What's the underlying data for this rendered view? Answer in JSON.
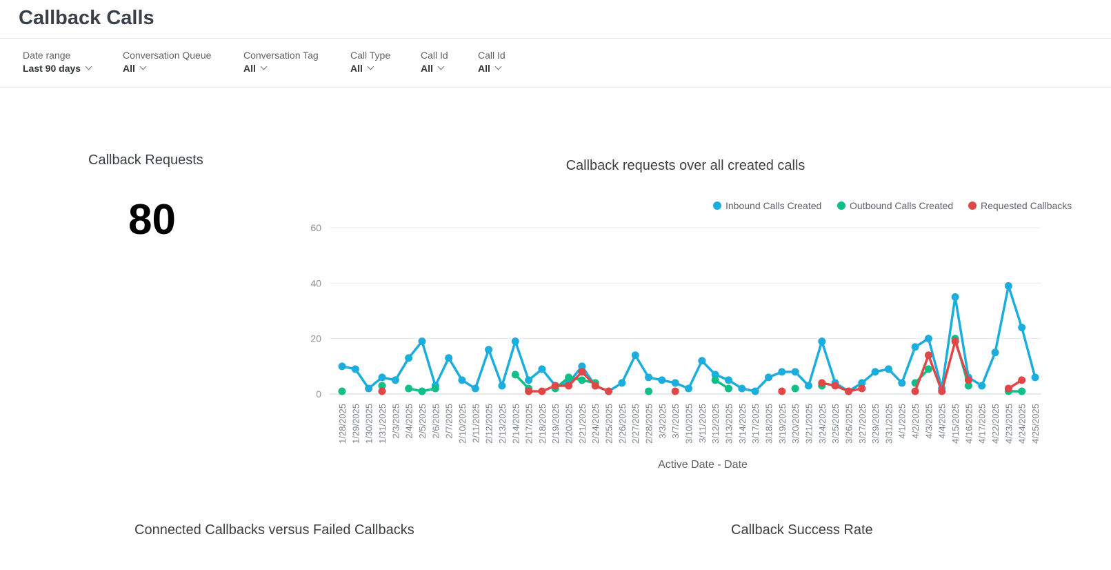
{
  "header": {
    "title": "Callback Calls"
  },
  "filters": [
    {
      "label": "Date range",
      "value": "Last 90 days"
    },
    {
      "label": "Conversation Queue",
      "value": "All"
    },
    {
      "label": "Conversation Tag",
      "value": "All"
    },
    {
      "label": "Call Type",
      "value": "All"
    },
    {
      "label": "Call Id",
      "value": "All"
    },
    {
      "label": "Call Id",
      "value": "All"
    }
  ],
  "kpi": {
    "title": "Callback Requests",
    "value": "80"
  },
  "sections": {
    "connected_vs_failed": "Connected Callbacks versus Failed Callbacks",
    "success_rate": "Callback Success Rate"
  },
  "chart_data": {
    "type": "line",
    "title": "Callback requests over all created calls",
    "xlabel": "Active Date - Date",
    "ylabel": "",
    "ylim": [
      0,
      60
    ],
    "yticks": [
      0,
      20,
      40,
      60
    ],
    "grid": true,
    "legend": "top-right",
    "x": [
      "1/28/2025",
      "1/29/2025",
      "1/30/2025",
      "1/31/2025",
      "2/3/2025",
      "2/4/2025",
      "2/5/2025",
      "2/6/2025",
      "2/7/2025",
      "2/10/2025",
      "2/11/2025",
      "2/12/2025",
      "2/13/2025",
      "2/14/2025",
      "2/17/2025",
      "2/18/2025",
      "2/19/2025",
      "2/20/2025",
      "2/21/2025",
      "2/24/2025",
      "2/25/2025",
      "2/26/2025",
      "2/27/2025",
      "2/28/2025",
      "3/3/2025",
      "3/7/2025",
      "3/10/2025",
      "3/11/2025",
      "3/12/2025",
      "3/13/2025",
      "3/14/2025",
      "3/17/2025",
      "3/18/2025",
      "3/19/2025",
      "3/20/2025",
      "3/21/2025",
      "3/24/2025",
      "3/25/2025",
      "3/26/2025",
      "3/27/2025",
      "3/29/2025",
      "3/31/2025",
      "4/1/2025",
      "4/2/2025",
      "4/3/2025",
      "4/4/2025",
      "4/15/2025",
      "4/16/2025",
      "4/17/2025",
      "4/22/2025",
      "4/23/2025",
      "4/24/2025",
      "4/25/2025"
    ],
    "series": [
      {
        "name": "Inbound Calls Created",
        "color": "#1aaddd",
        "values": [
          10,
          9,
          2,
          6,
          5,
          13,
          19,
          3,
          13,
          5,
          2,
          16,
          3,
          19,
          5,
          9,
          3,
          4,
          10,
          3,
          1,
          4,
          14,
          6,
          5,
          4,
          2,
          12,
          7,
          5,
          2,
          1,
          6,
          8,
          8,
          3,
          19,
          4,
          1,
          4,
          8,
          9,
          4,
          17,
          20,
          2,
          35,
          6,
          3,
          15,
          39,
          24,
          6
        ]
      },
      {
        "name": "Outbound Calls Created",
        "color": "#0fbf86",
        "values": [
          1,
          null,
          null,
          3,
          null,
          2,
          1,
          2,
          null,
          null,
          null,
          null,
          null,
          7,
          2,
          null,
          2,
          6,
          5,
          4,
          null,
          null,
          null,
          1,
          null,
          null,
          null,
          null,
          5,
          2,
          null,
          null,
          null,
          null,
          2,
          null,
          3,
          null,
          null,
          null,
          null,
          null,
          null,
          4,
          9,
          null,
          20,
          3,
          null,
          null,
          1,
          1,
          null
        ]
      },
      {
        "name": "Requested Callbacks",
        "color": "#e04848",
        "values": [
          null,
          null,
          null,
          1,
          null,
          null,
          null,
          null,
          null,
          null,
          null,
          null,
          null,
          null,
          1,
          1,
          3,
          3,
          8,
          3,
          1,
          null,
          null,
          null,
          null,
          1,
          null,
          null,
          null,
          null,
          null,
          null,
          null,
          1,
          null,
          null,
          4,
          3,
          1,
          2,
          null,
          null,
          null,
          1,
          14,
          1,
          19,
          5,
          null,
          null,
          2,
          5,
          null
        ]
      }
    ]
  }
}
